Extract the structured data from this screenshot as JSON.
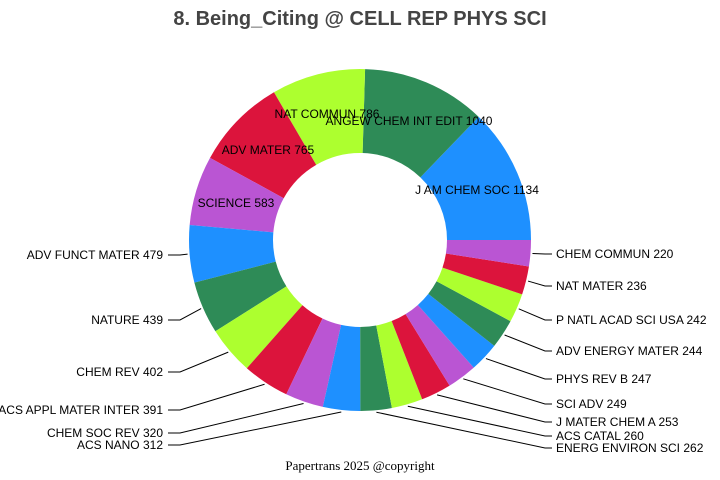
{
  "chart_data": {
    "type": "pie",
    "hole": true,
    "title": "8. Being_Citing @ CELL REP PHYS SCI",
    "direction": "counterclockwise",
    "start": "east",
    "categories": [
      "J AM CHEM SOC",
      "ANGEW CHEM INT EDIT",
      "NAT COMMUN",
      "ADV MATER",
      "SCIENCE",
      "ADV FUNCT MATER",
      "NATURE",
      "CHEM REV",
      "ACS APPL MATER INTER",
      "CHEM SOC REV",
      "ACS NANO",
      "ENERG ENVIRON SCI",
      "ACS CATAL",
      "J MATER CHEM A",
      "SCI ADV",
      "PHYS REV B",
      "ADV ENERGY MATER",
      "P NATL ACAD SCI USA",
      "NAT MATER",
      "CHEM COMMUN"
    ],
    "values": [
      1134,
      1040,
      786,
      765,
      583,
      479,
      439,
      402,
      391,
      320,
      312,
      262,
      260,
      253,
      249,
      247,
      244,
      242,
      236,
      220
    ],
    "labels": [
      "J AM CHEM SOC 1134",
      "ANGEW CHEM INT EDIT 1040",
      "NAT COMMUN 786",
      "ADV MATER 765",
      "SCIENCE 583",
      "ADV FUNCT MATER 479",
      "NATURE 439",
      "CHEM REV 402",
      "ACS APPL MATER INTER 391",
      "CHEM SOC REV 320",
      "ACS NANO 312",
      "ENERG ENVIRON SCI 262",
      "ACS CATAL 260",
      "J MATER CHEM A 253",
      "SCI ADV 249",
      "PHYS REV B 247",
      "ADV ENERGY MATER 244",
      "P NATL ACAD SCI USA 242",
      "NAT MATER 236",
      "CHEM COMMUN 220"
    ],
    "colors": [
      "#1E90FF",
      "#2E8B57",
      "#ADFF2F",
      "#DC143C",
      "#BA55D3"
    ]
  },
  "footer": "Papertrans 2025 @copyright"
}
